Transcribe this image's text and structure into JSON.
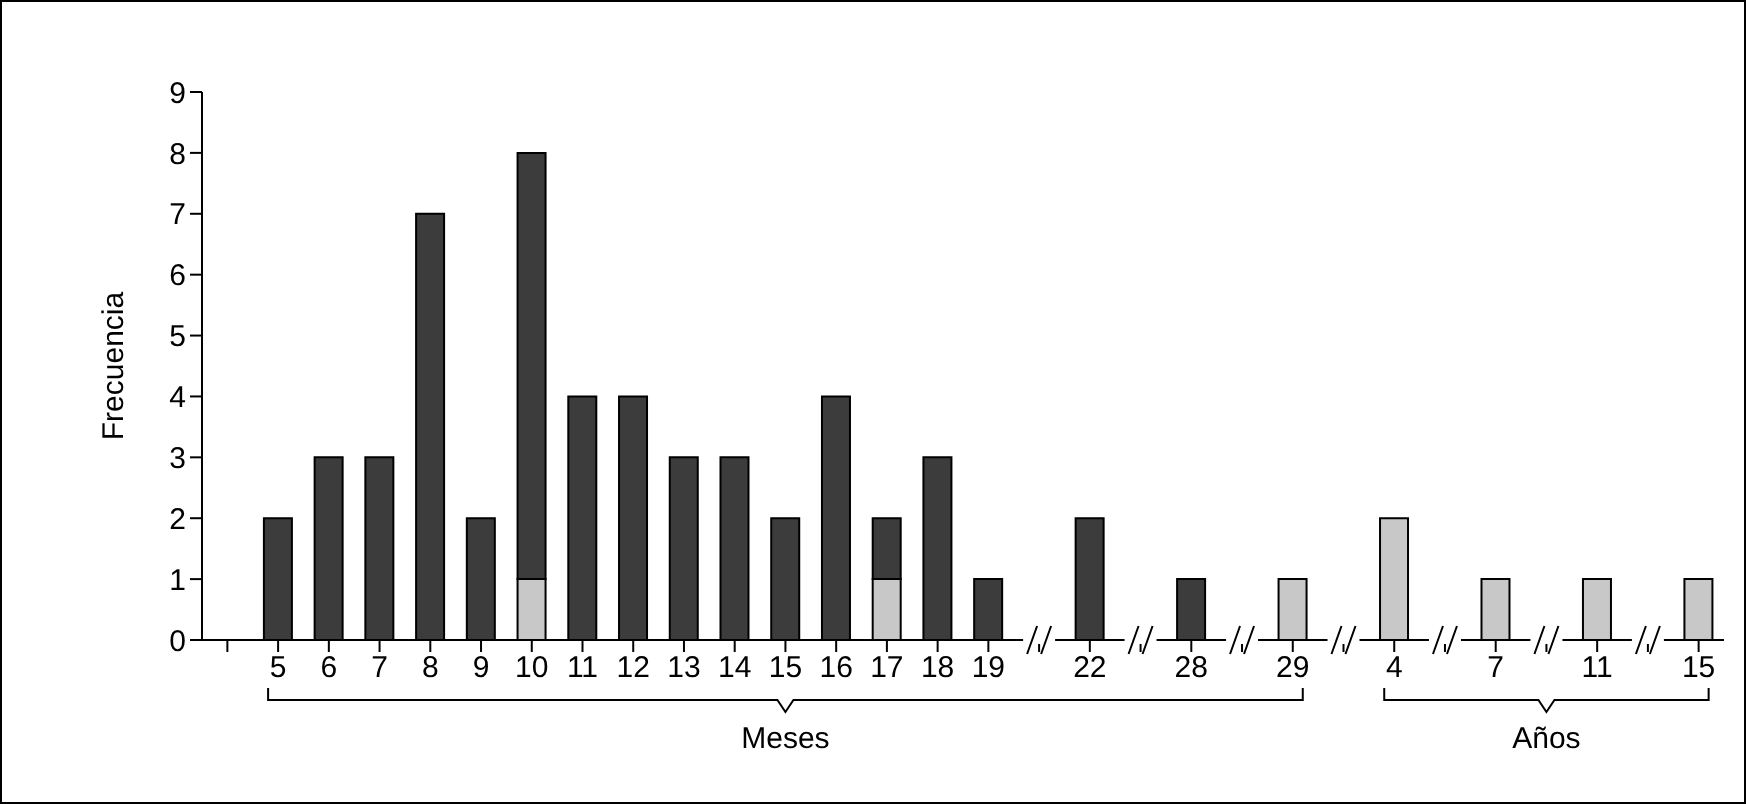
{
  "chart_data": {
    "type": "bar",
    "stacked": true,
    "ylabel": "Frecuencia",
    "ylim": [
      0,
      9
    ],
    "yticks": [
      0,
      1,
      2,
      3,
      4,
      5,
      6,
      7,
      8,
      9
    ],
    "categories": [
      null,
      "5",
      "6",
      "7",
      "8",
      "9",
      "10",
      "11",
      "12",
      "13",
      "14",
      "15",
      "16",
      "17",
      "18",
      "19",
      null,
      "22",
      null,
      "28",
      null,
      "29",
      null,
      "4",
      null,
      "7",
      null,
      "11",
      null,
      "15"
    ],
    "series": [
      {
        "color": "#c8c8c8",
        "values": [
          null,
          null,
          null,
          null,
          null,
          null,
          1,
          null,
          null,
          null,
          null,
          null,
          null,
          1,
          null,
          null,
          null,
          null,
          null,
          null,
          null,
          1,
          null,
          2,
          null,
          1,
          null,
          1,
          null,
          1
        ]
      },
      {
        "color": "#3c3c3c",
        "values": [
          null,
          2,
          3,
          3,
          7,
          2,
          7,
          4,
          4,
          3,
          3,
          2,
          4,
          1,
          3,
          1,
          null,
          2,
          null,
          1,
          null,
          null,
          null,
          null,
          null,
          null,
          null,
          null,
          null,
          null
        ]
      }
    ],
    "annotations": [
      "Meses",
      "Años"
    ]
  }
}
